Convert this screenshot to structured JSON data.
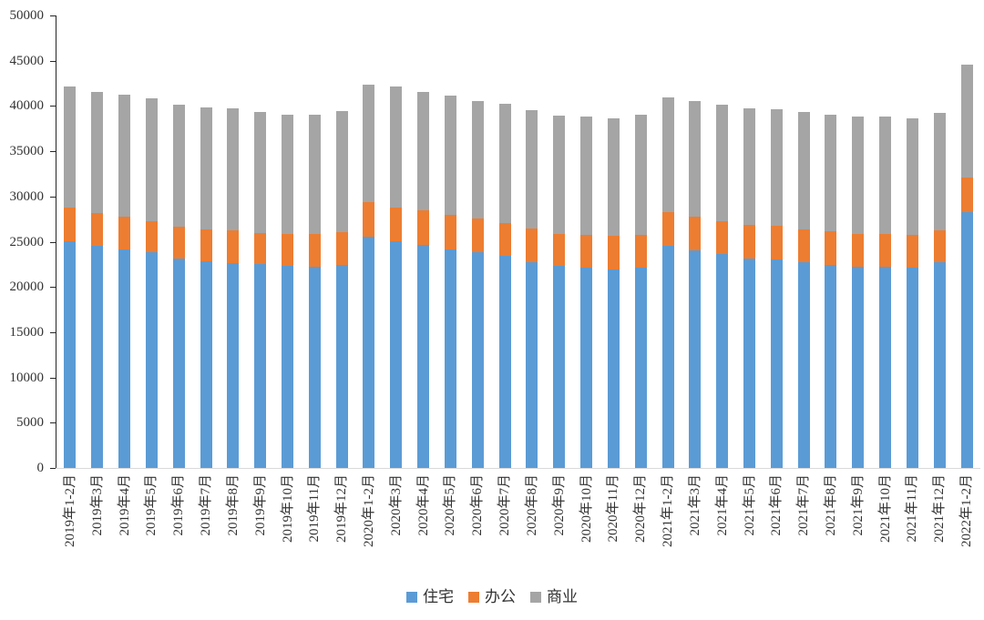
{
  "chart_data": {
    "type": "bar",
    "stacked": true,
    "title": "",
    "xlabel": "",
    "ylabel": "",
    "categories": [
      "2019年1-2月",
      "2019年3月",
      "2019年4月",
      "2019年5月",
      "2019年6月",
      "2019年7月",
      "2019年8月",
      "2019年9月",
      "2019年10月",
      "2019年11月",
      "2019年12月",
      "2020年1-2月",
      "2020年3月",
      "2020年4月",
      "2020年5月",
      "2020年6月",
      "2020年7月",
      "2020年8月",
      "2020年9月",
      "2020年10月",
      "2020年11月",
      "2020年12月",
      "2021年1-2月",
      "2021年3月",
      "2021年4月",
      "2021年5月",
      "2021年6月",
      "2021年7月",
      "2021年8月",
      "2021年9月",
      "2021年10月",
      "2021年11月",
      "2021年12月",
      "2022年1-2月"
    ],
    "series": [
      {
        "name": "住宅",
        "color": "#5B9BD5",
        "values": [
          25100,
          24600,
          24200,
          23800,
          23100,
          22800,
          22600,
          22500,
          22300,
          22200,
          22400,
          25600,
          25100,
          24700,
          24200,
          23800,
          23400,
          22700,
          22300,
          22100,
          21900,
          22100,
          24600,
          24000,
          23600,
          23100,
          23000,
          22700,
          22400,
          22200,
          22200,
          22100,
          22700,
          28300
        ]
      },
      {
        "name": "办公",
        "color": "#ED7D31",
        "values": [
          3700,
          3600,
          3600,
          3500,
          3600,
          3600,
          3700,
          3500,
          3600,
          3700,
          3700,
          3800,
          3700,
          3800,
          3800,
          3800,
          3700,
          3800,
          3600,
          3700,
          3800,
          3700,
          3700,
          3800,
          3700,
          3800,
          3800,
          3700,
          3800,
          3700,
          3700,
          3700,
          3600,
          3800
        ]
      },
      {
        "name": "商业",
        "color": "#A5A5A5",
        "values": [
          13400,
          13400,
          13500,
          13500,
          13400,
          13400,
          13400,
          13300,
          13100,
          13100,
          13300,
          13000,
          13400,
          13100,
          13200,
          12900,
          13100,
          13000,
          13000,
          13000,
          12900,
          13200,
          12700,
          12700,
          12800,
          12800,
          12800,
          12900,
          12800,
          12900,
          12900,
          12800,
          12900,
          12500
        ]
      }
    ],
    "ylim": [
      0,
      50000
    ],
    "ytick_step": 5000,
    "yticks": [
      0,
      5000,
      10000,
      15000,
      20000,
      25000,
      30000,
      35000,
      40000,
      45000,
      50000
    ],
    "grid": false,
    "legend_position": "bottom",
    "x_tick_label_rotation_deg": -90
  }
}
